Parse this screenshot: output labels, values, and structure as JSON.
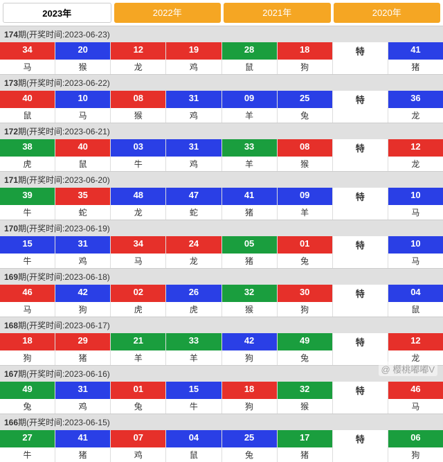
{
  "tabs": [
    {
      "label": "2023年",
      "active": true
    },
    {
      "label": "2022年",
      "active": false
    },
    {
      "label": "2021年",
      "active": false
    },
    {
      "label": "2020年",
      "active": false
    }
  ],
  "colors": {
    "red": "#e6302a",
    "blue": "#2a3fe6",
    "green": "#1a9e3e"
  },
  "te_label": "特",
  "header_prefix": "期(开奖时间:",
  "header_suffix": ")",
  "periods": [
    {
      "no": "174",
      "date": "2023-06-23",
      "nums": [
        {
          "v": "34",
          "c": "red"
        },
        {
          "v": "20",
          "c": "blue"
        },
        {
          "v": "12",
          "c": "red"
        },
        {
          "v": "19",
          "c": "red"
        },
        {
          "v": "28",
          "c": "green"
        },
        {
          "v": "18",
          "c": "red"
        },
        {
          "v": "特",
          "c": "te"
        },
        {
          "v": "41",
          "c": "blue"
        }
      ],
      "zodiacs": [
        "马",
        "猴",
        "龙",
        "鸡",
        "鼠",
        "狗",
        "",
        "猪"
      ]
    },
    {
      "no": "173",
      "date": "2023-06-22",
      "nums": [
        {
          "v": "40",
          "c": "red"
        },
        {
          "v": "10",
          "c": "blue"
        },
        {
          "v": "08",
          "c": "red"
        },
        {
          "v": "31",
          "c": "blue"
        },
        {
          "v": "09",
          "c": "blue"
        },
        {
          "v": "25",
          "c": "blue"
        },
        {
          "v": "特",
          "c": "te"
        },
        {
          "v": "36",
          "c": "blue"
        }
      ],
      "zodiacs": [
        "鼠",
        "马",
        "猴",
        "鸡",
        "羊",
        "兔",
        "",
        "龙"
      ]
    },
    {
      "no": "172",
      "date": "2023-06-21",
      "nums": [
        {
          "v": "38",
          "c": "green"
        },
        {
          "v": "40",
          "c": "red"
        },
        {
          "v": "03",
          "c": "blue"
        },
        {
          "v": "31",
          "c": "blue"
        },
        {
          "v": "33",
          "c": "green"
        },
        {
          "v": "08",
          "c": "red"
        },
        {
          "v": "特",
          "c": "te"
        },
        {
          "v": "12",
          "c": "red"
        }
      ],
      "zodiacs": [
        "虎",
        "鼠",
        "牛",
        "鸡",
        "羊",
        "猴",
        "",
        "龙"
      ]
    },
    {
      "no": "171",
      "date": "2023-06-20",
      "nums": [
        {
          "v": "39",
          "c": "green"
        },
        {
          "v": "35",
          "c": "red"
        },
        {
          "v": "48",
          "c": "blue"
        },
        {
          "v": "47",
          "c": "blue"
        },
        {
          "v": "41",
          "c": "blue"
        },
        {
          "v": "09",
          "c": "blue"
        },
        {
          "v": "特",
          "c": "te"
        },
        {
          "v": "10",
          "c": "blue"
        }
      ],
      "zodiacs": [
        "牛",
        "蛇",
        "龙",
        "蛇",
        "猪",
        "羊",
        "",
        "马"
      ]
    },
    {
      "no": "170",
      "date": "2023-06-19",
      "nums": [
        {
          "v": "15",
          "c": "blue"
        },
        {
          "v": "31",
          "c": "blue"
        },
        {
          "v": "34",
          "c": "red"
        },
        {
          "v": "24",
          "c": "red"
        },
        {
          "v": "05",
          "c": "green"
        },
        {
          "v": "01",
          "c": "red"
        },
        {
          "v": "特",
          "c": "te"
        },
        {
          "v": "10",
          "c": "blue"
        }
      ],
      "zodiacs": [
        "牛",
        "鸡",
        "马",
        "龙",
        "猪",
        "兔",
        "",
        "马"
      ]
    },
    {
      "no": "169",
      "date": "2023-06-18",
      "nums": [
        {
          "v": "46",
          "c": "red"
        },
        {
          "v": "42",
          "c": "blue"
        },
        {
          "v": "02",
          "c": "red"
        },
        {
          "v": "26",
          "c": "blue"
        },
        {
          "v": "32",
          "c": "green"
        },
        {
          "v": "30",
          "c": "red"
        },
        {
          "v": "特",
          "c": "te"
        },
        {
          "v": "04",
          "c": "blue"
        }
      ],
      "zodiacs": [
        "马",
        "狗",
        "虎",
        "虎",
        "猴",
        "狗",
        "",
        "鼠"
      ]
    },
    {
      "no": "168",
      "date": "2023-06-17",
      "nums": [
        {
          "v": "18",
          "c": "red"
        },
        {
          "v": "29",
          "c": "red"
        },
        {
          "v": "21",
          "c": "green"
        },
        {
          "v": "33",
          "c": "green"
        },
        {
          "v": "42",
          "c": "blue"
        },
        {
          "v": "49",
          "c": "green"
        },
        {
          "v": "特",
          "c": "te"
        },
        {
          "v": "12",
          "c": "red"
        }
      ],
      "zodiacs": [
        "狗",
        "猪",
        "羊",
        "羊",
        "狗",
        "兔",
        "",
        "龙"
      ]
    },
    {
      "no": "167",
      "date": "2023-06-16",
      "nums": [
        {
          "v": "49",
          "c": "green"
        },
        {
          "v": "31",
          "c": "blue"
        },
        {
          "v": "01",
          "c": "red"
        },
        {
          "v": "15",
          "c": "blue"
        },
        {
          "v": "18",
          "c": "red"
        },
        {
          "v": "32",
          "c": "green"
        },
        {
          "v": "特",
          "c": "te"
        },
        {
          "v": "46",
          "c": "red"
        }
      ],
      "zodiacs": [
        "兔",
        "鸡",
        "兔",
        "牛",
        "狗",
        "猴",
        "",
        "马"
      ]
    },
    {
      "no": "166",
      "date": "2023-06-15",
      "nums": [
        {
          "v": "27",
          "c": "green"
        },
        {
          "v": "41",
          "c": "blue"
        },
        {
          "v": "07",
          "c": "red"
        },
        {
          "v": "04",
          "c": "blue"
        },
        {
          "v": "25",
          "c": "blue"
        },
        {
          "v": "17",
          "c": "green"
        },
        {
          "v": "特",
          "c": "te"
        },
        {
          "v": "06",
          "c": "green"
        }
      ],
      "zodiacs": [
        "牛",
        "猪",
        "鸡",
        "鼠",
        "兔",
        "猪",
        "",
        "狗"
      ]
    }
  ],
  "watermark": "@ 樱桃嘟嘟V"
}
